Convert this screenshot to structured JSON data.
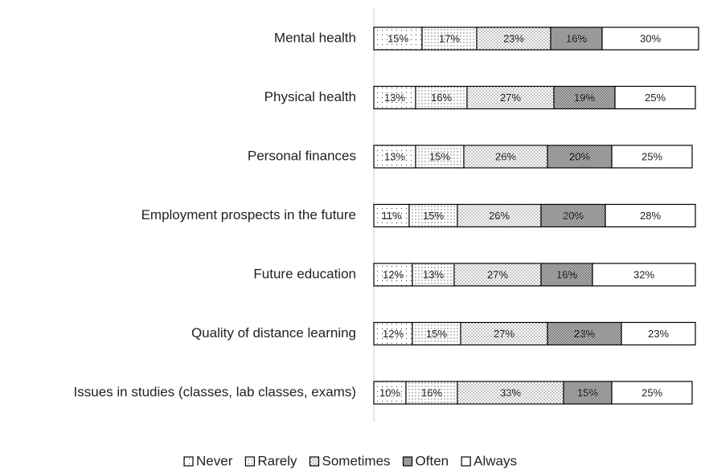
{
  "chart_data": {
    "type": "stacked-bar-horizontal",
    "categories": [
      "Mental health",
      "Physical health",
      "Personal finances",
      "Employment prospects in the future",
      "Future education",
      "Quality of distance learning",
      "Issues in studies (classes, lab classes, exams)"
    ],
    "xlim": [
      0,
      100
    ],
    "legend": "bottom",
    "series": [
      {
        "name": "Never",
        "pattern": "p-never",
        "values": [
          15,
          13,
          13,
          11,
          12,
          12,
          10
        ],
        "value_labels": [
          "15%",
          "13%",
          "13%",
          "11%",
          "12%",
          "12%",
          "10%"
        ]
      },
      {
        "name": "Rarely",
        "pattern": "p-rarely",
        "values": [
          17,
          16,
          15,
          15,
          13,
          15,
          16
        ],
        "value_labels": [
          "17%",
          "16%",
          "15%",
          "15%",
          "13%",
          "15%",
          "16%"
        ]
      },
      {
        "name": "Sometimes",
        "pattern": "p-sometimes",
        "values": [
          23,
          27,
          26,
          26,
          27,
          27,
          33
        ],
        "value_labels": [
          "23%",
          "27%",
          "26%",
          "26%",
          "27%",
          "27%",
          "33%"
        ]
      },
      {
        "name": "Often",
        "pattern": "p-often",
        "values": [
          16,
          19,
          20,
          20,
          16,
          23,
          15
        ],
        "value_labels": [
          "16%",
          "19%",
          "20%",
          "20%",
          "16%",
          "23%",
          "15%"
        ]
      },
      {
        "name": "Always",
        "pattern": "p-always",
        "values": [
          30,
          25,
          25,
          28,
          32,
          23,
          25
        ],
        "value_labels": [
          "30%",
          "25%",
          "25%",
          "28%",
          "32%",
          "23%",
          "25%"
        ]
      }
    ]
  }
}
